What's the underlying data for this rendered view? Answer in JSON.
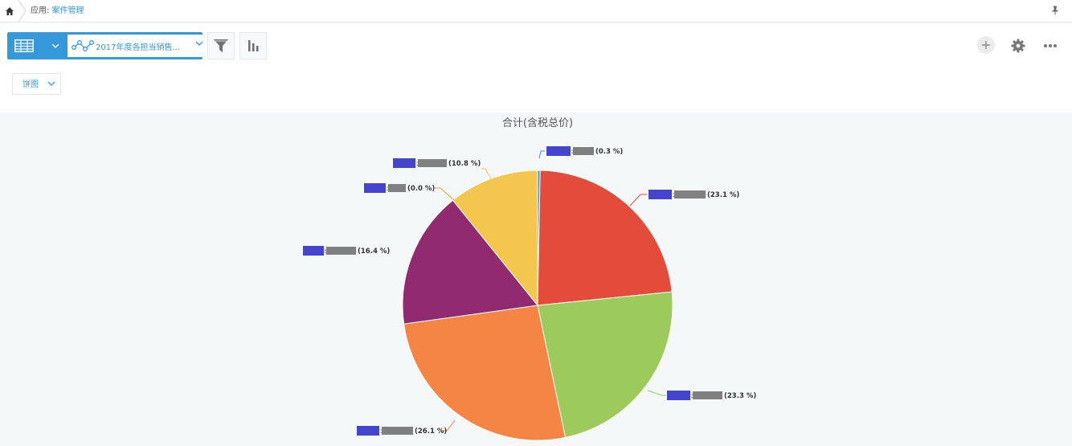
{
  "breadcrumb": {
    "prefix": "应用: ",
    "app_name": "案件管理"
  },
  "toolbar": {
    "graph_name": "2017年度各担当销售...",
    "chart_type": "饼图"
  },
  "icons": {
    "home": "home-icon",
    "pin": "pin-icon",
    "table": "table-view-icon",
    "graph": "line-graph-icon",
    "filter": "filter-icon",
    "bar": "bar-chart-icon",
    "add": "plus-icon",
    "settings": "gear-icon",
    "more": "more-icon"
  },
  "colors": {
    "accent": "#3498db",
    "chart_bg": "#f5f8f9"
  },
  "chart_data": {
    "type": "pie",
    "title": "合计(含税总价)",
    "start_angle_deg": 0,
    "direction": "clockwise",
    "slices": [
      {
        "percent": 0.3,
        "label": "(0.3 %)",
        "color": "#3498db"
      },
      {
        "percent": 23.1,
        "label": "(23.1 %)",
        "color": "#e34c3b"
      },
      {
        "percent": 23.3,
        "label": "(23.3 %)",
        "color": "#9dcb5b"
      },
      {
        "percent": 26.1,
        "label": "(26.1 %)",
        "color": "#f48545"
      },
      {
        "percent": 16.4,
        "label": "(16.4 %)",
        "color": "#922a6f"
      },
      {
        "percent": 0.0,
        "label": "(0.0 %)",
        "color": "#f0a030"
      },
      {
        "percent": 10.8,
        "label": "(10.8 %)",
        "color": "#f3c64e"
      }
    ]
  }
}
